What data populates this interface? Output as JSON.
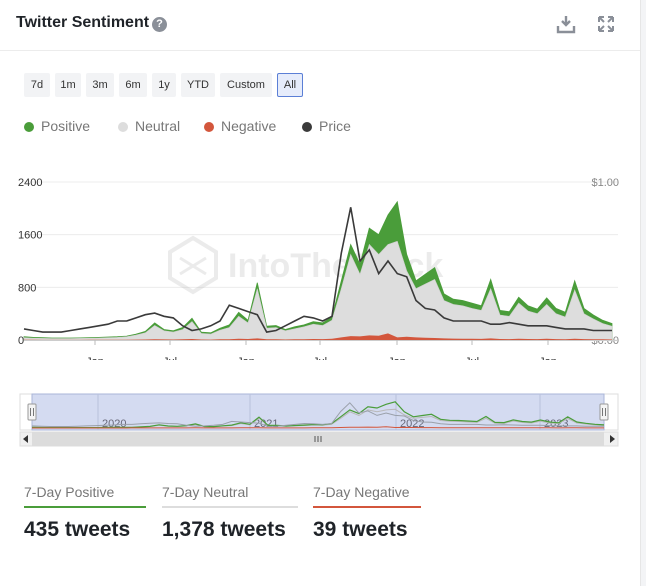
{
  "header": {
    "title": "Twitter Sentiment",
    "help_icon": "question-circle-icon",
    "download_icon": "download-icon",
    "expand_icon": "expand-icon"
  },
  "ranges": [
    {
      "label": "7d",
      "active": false
    },
    {
      "label": "1m",
      "active": false
    },
    {
      "label": "3m",
      "active": false
    },
    {
      "label": "6m",
      "active": false
    },
    {
      "label": "1y",
      "active": false
    },
    {
      "label": "YTD",
      "active": false
    },
    {
      "label": "Custom",
      "active": false
    },
    {
      "label": "All",
      "active": true
    }
  ],
  "colors": {
    "positive": "#4a9d3a",
    "neutral": "#dddddd",
    "negative": "#d3563c",
    "price": "#3a3a3a",
    "accent": "#5b7fd6"
  },
  "watermark": "IntoTheBlock",
  "chart_data": {
    "type": "area",
    "x_tick_labels": [
      "Jan",
      "Jul",
      "Jan",
      "Jul",
      "Jan",
      "Jul",
      "Jan"
    ],
    "y_ticks_left": [
      "2400",
      "1600",
      "800",
      "0"
    ],
    "y_ticks_right": [
      "$1.00",
      "$0.00"
    ],
    "ylim": [
      0,
      2400
    ],
    "y2lim": [
      0,
      1.0
    ],
    "legend_position": "top-left",
    "grid": true,
    "series": [
      {
        "name": "Positive",
        "color": "#4a9d3a",
        "values": [
          50,
          40,
          35,
          30,
          30,
          30,
          32,
          35,
          40,
          45,
          50,
          60,
          90,
          130,
          260,
          160,
          140,
          190,
          330,
          120,
          110,
          180,
          230,
          420,
          300,
          870,
          210,
          220,
          160,
          200,
          230,
          280,
          260,
          350,
          900,
          1450,
          1150,
          1700,
          1600,
          1900,
          2100,
          1300,
          900,
          1000,
          1100,
          700,
          620,
          600,
          560,
          520,
          920,
          450,
          430,
          650,
          520,
          470,
          640,
          480,
          420,
          900,
          480,
          380,
          300,
          250
        ]
      },
      {
        "name": "Neutral",
        "color": "#dddddd",
        "values": [
          35,
          28,
          25,
          22,
          22,
          22,
          24,
          26,
          30,
          35,
          40,
          50,
          75,
          110,
          220,
          140,
          120,
          160,
          280,
          100,
          90,
          150,
          190,
          360,
          260,
          780,
          180,
          190,
          140,
          170,
          200,
          240,
          220,
          300,
          780,
          1300,
          1000,
          1450,
          1300,
          1450,
          1500,
          1050,
          780,
          850,
          920,
          600,
          540,
          520,
          480,
          450,
          780,
          380,
          360,
          560,
          440,
          400,
          540,
          400,
          350,
          760,
          400,
          320,
          250,
          210
        ]
      },
      {
        "name": "Negative",
        "color": "#d3563c",
        "values": [
          3,
          3,
          2,
          2,
          2,
          2,
          2,
          3,
          3,
          3,
          4,
          5,
          6,
          8,
          12,
          9,
          8,
          10,
          15,
          7,
          6,
          10,
          12,
          18,
          15,
          25,
          10,
          10,
          8,
          10,
          12,
          15,
          14,
          20,
          40,
          60,
          55,
          70,
          65,
          100,
          40,
          50,
          40,
          35,
          30,
          25,
          22,
          20,
          18,
          16,
          25,
          15,
          14,
          18,
          15,
          14,
          18,
          14,
          12,
          20,
          14,
          12,
          10,
          8
        ]
      },
      {
        "name": "Price",
        "color": "#3a3a3a",
        "values": [
          0.07,
          0.06,
          0.05,
          0.05,
          0.05,
          0.06,
          0.07,
          0.08,
          0.09,
          0.1,
          0.12,
          0.12,
          0.14,
          0.16,
          0.17,
          0.15,
          0.14,
          0.09,
          0.06,
          0.07,
          0.09,
          0.12,
          0.22,
          0.2,
          0.18,
          0.16,
          0.05,
          0.06,
          0.09,
          0.12,
          0.15,
          0.14,
          0.12,
          0.15,
          0.55,
          0.84,
          0.5,
          0.57,
          0.42,
          0.5,
          0.42,
          0.4,
          0.25,
          0.2,
          0.19,
          0.14,
          0.12,
          0.12,
          0.12,
          0.12,
          0.1,
          0.1,
          0.11,
          0.1,
          0.09,
          0.09,
          0.09,
          0.08,
          0.07,
          0.07,
          0.07,
          0.06,
          0.06,
          0.06
        ]
      }
    ],
    "navigator": {
      "year_labels": [
        "2020",
        "2021",
        "2022",
        "2023"
      ],
      "selection": [
        0.0,
        1.0
      ]
    }
  },
  "stats": [
    {
      "label": "7-Day Positive",
      "value": "435 tweets",
      "color": "#4a9d3a"
    },
    {
      "label": "7-Day Neutral",
      "value": "1,378 tweets",
      "color": "#dddddd"
    },
    {
      "label": "7-Day Negative",
      "value": "39 tweets",
      "color": "#d3563c"
    }
  ]
}
